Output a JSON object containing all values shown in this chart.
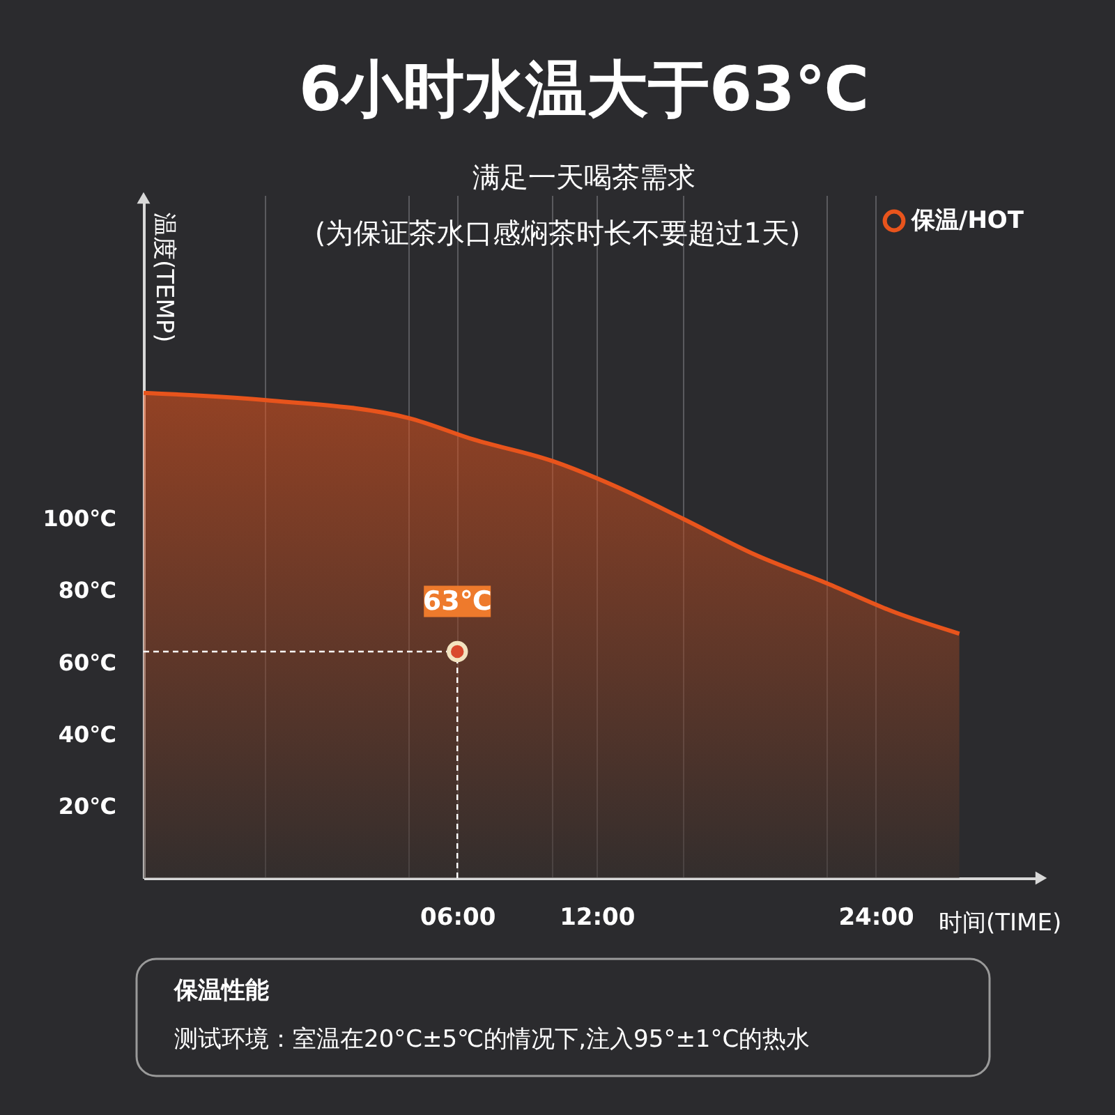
{
  "chart_data": {
    "type": "area",
    "title": "6小时水温大于63℃",
    "subtitle": "满足一天喝茶需求",
    "xlabel": "时间(TIME)",
    "ylabel": "温度(TEMP)",
    "annotations": [
      "(为保证茶水口感焖茶时长不要超过1天)",
      "保温性能",
      "测试环境：室温在20°C±5℃的情况下,注入95°±1°C的热水",
      {
        "text": "63℃",
        "x": 6,
        "y": 63
      }
    ],
    "series": [
      {
        "name": "保温/HOT",
        "color": "#e8541c",
        "x": [
          -7.5,
          -2.3,
          3.9,
          6.7,
          10.1,
          12.8,
          15.7,
          18.8,
          21.9,
          24.8,
          27.6
        ],
        "values": [
          135,
          133,
          128,
          122,
          116,
          109,
          100,
          90,
          82,
          74,
          68
        ]
      },
      {
        "type": "scatter",
        "color": "#d9492e",
        "x": [
          6
        ],
        "values": [
          63
        ],
        "marker": "circle"
      }
    ],
    "xlim": [
      -7.5,
      31
    ],
    "ylim": [
      0,
      190
    ],
    "xticks": [
      {
        "value": -2.3,
        "label": null
      },
      {
        "value": 3.9,
        "label": null
      },
      {
        "value": 6,
        "label": "06:00"
      },
      {
        "value": 10.1,
        "label": null
      },
      {
        "value": 12,
        "label": "12:00"
      },
      {
        "value": 15.7,
        "label": null
      },
      {
        "value": 21.9,
        "label": null
      },
      {
        "value": 24,
        "label": "24:00"
      }
    ],
    "yticks": [
      {
        "value": 20,
        "label": "20℃"
      },
      {
        "value": 40,
        "label": "40℃"
      },
      {
        "value": 60,
        "label": "60℃"
      },
      {
        "value": 80,
        "label": "80℃"
      },
      {
        "value": 100,
        "label": "100℃"
      }
    ],
    "ref_lines": [
      {
        "axis": "y",
        "value": 63,
        "line_style": "dashed",
        "color": "#ffffff"
      },
      {
        "axis": "x",
        "value": 6,
        "line_style": "dashed",
        "color": "#ffffff"
      }
    ],
    "grid": "x",
    "legend": "top right"
  }
}
